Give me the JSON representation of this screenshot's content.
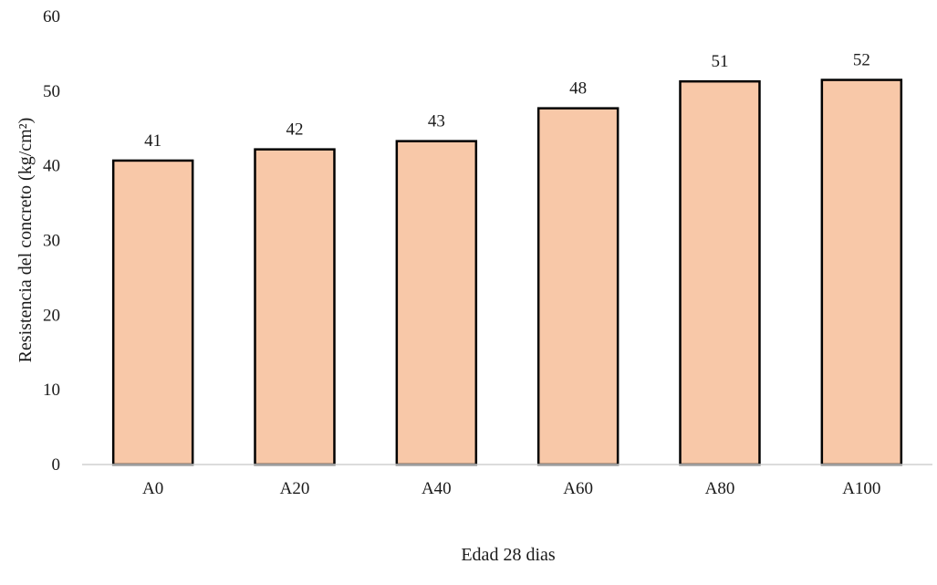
{
  "chart_data": {
    "type": "bar",
    "categories": [
      "A0",
      "A20",
      "A40",
      "A60",
      "A80",
      "A100"
    ],
    "values": [
      40.7,
      42.2,
      43.3,
      47.7,
      51.3,
      51.5
    ],
    "data_labels": [
      "41",
      "42",
      "43",
      "48",
      "51",
      "52"
    ],
    "ylim": [
      0,
      60
    ],
    "yticks": [
      0,
      10,
      20,
      30,
      40,
      50,
      60
    ],
    "ylabel": "Resistencia del concreto (kg/cm²)",
    "xlabel": "Edad 28 dias",
    "grid": false,
    "legend": "none",
    "bar_fill": "#f8c8a8",
    "bar_stroke": "#000000",
    "axis_color": "#d0d0d0"
  }
}
